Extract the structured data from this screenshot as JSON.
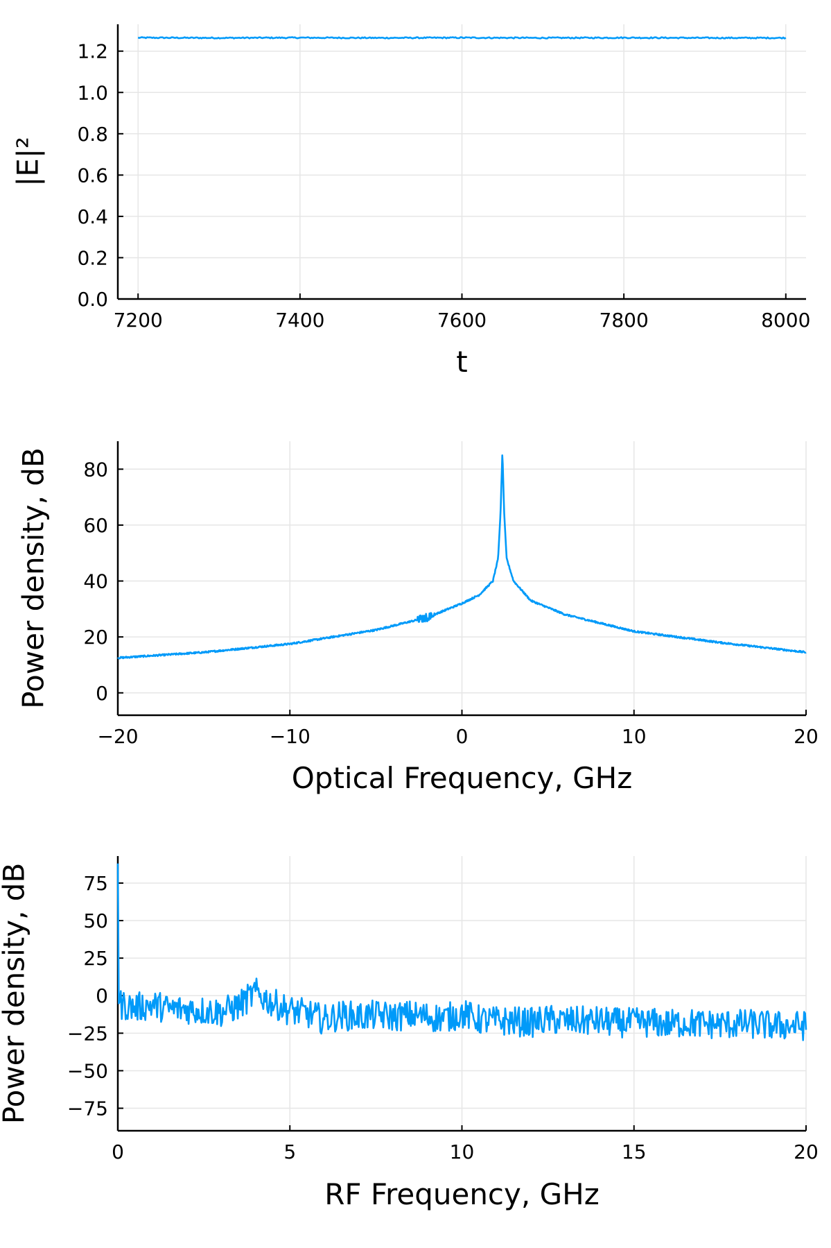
{
  "colors": {
    "series": "#009AF9",
    "grid": "#e6e6e6",
    "axis": "#000000"
  },
  "chart_data": [
    {
      "type": "line",
      "xlabel": "t",
      "ylabel": "|E|²",
      "xlim": [
        7175,
        8025
      ],
      "ylim": [
        0.0,
        1.33
      ],
      "xticks": [
        7200,
        7400,
        7600,
        7800,
        8000
      ],
      "xtick_labels": [
        "7200",
        "7400",
        "7600",
        "7800",
        "8000"
      ],
      "yticks": [
        0.0,
        0.2,
        0.4,
        0.6,
        0.8,
        1.0,
        1.2
      ],
      "ytick_labels": [
        "0.0",
        "0.2",
        "0.4",
        "0.6",
        "0.8",
        "1.0",
        "1.2"
      ],
      "grid": true,
      "legend": "none",
      "series": [
        {
          "x": [
            7200,
            7300,
            7400,
            7500,
            7600,
            7700,
            7800,
            7900,
            8000
          ],
          "y": [
            1.265,
            1.264,
            1.265,
            1.264,
            1.265,
            1.264,
            1.265,
            1.264,
            1.264
          ]
        }
      ]
    },
    {
      "type": "line",
      "xlabel": "Optical Frequency, GHz",
      "ylabel": "Power density, dB",
      "xlim": [
        -20,
        20
      ],
      "ylim": [
        -8,
        90
      ],
      "xticks": [
        -20,
        -10,
        0,
        10,
        20
      ],
      "xtick_labels": [
        "−20",
        "−10",
        "0",
        "10",
        "20"
      ],
      "yticks": [
        0,
        20,
        40,
        60,
        80
      ],
      "ytick_labels": [
        "0",
        "20",
        "40",
        "60",
        "80"
      ],
      "grid": true,
      "legend": "none",
      "series": [
        {
          "x": [
            -20,
            -15,
            -10,
            -5,
            -2,
            0,
            1,
            1.8,
            2.1,
            2.25,
            2.35,
            2.45,
            2.6,
            3,
            4,
            6,
            10,
            15,
            20
          ],
          "y": [
            12.5,
            14.5,
            17.5,
            22.5,
            27,
            32,
            35,
            40,
            48,
            65,
            86.5,
            65,
            48,
            40,
            33,
            28,
            22,
            18,
            14.5
          ]
        }
      ]
    },
    {
      "type": "line",
      "xlabel": "RF Frequency, GHz",
      "ylabel": "Power density, dB",
      "xlim": [
        0,
        20
      ],
      "ylim": [
        -90,
        93
      ],
      "xticks": [
        0,
        5,
        10,
        15,
        20
      ],
      "xtick_labels": [
        "0",
        "5",
        "10",
        "15",
        "20"
      ],
      "yticks": [
        -75,
        -50,
        -25,
        0,
        25,
        50,
        75
      ],
      "ytick_labels": [
        "−75",
        "−50",
        "−25",
        "0",
        "25",
        "50",
        "75"
      ],
      "grid": true,
      "legend": "none",
      "series": [
        {
          "x": [
            0,
            0.02,
            0.1,
            0.5,
            1,
            1.5,
            2,
            2.5,
            3,
            3.5,
            4,
            4.5,
            5,
            5.5,
            6,
            6.5,
            7,
            7.5,
            8,
            8.5,
            9,
            9.5,
            10,
            10.5,
            11,
            11.5,
            12,
            12.5,
            13,
            13.5,
            14,
            14.5,
            15,
            15.5,
            16,
            16.5,
            17,
            17.5,
            18,
            18.5,
            19,
            19.5,
            20
          ],
          "y": [
            88,
            -5,
            -6,
            -8,
            -6,
            -9,
            -9,
            -10,
            -11,
            -7,
            2,
            -5,
            -10,
            -12,
            -16,
            -13,
            -14,
            -13,
            -14,
            -13,
            -14,
            -15,
            -12,
            -16,
            -17,
            -17,
            -18,
            -16,
            -17,
            -17,
            -17,
            -18,
            -18,
            -18,
            -19,
            -18,
            -19,
            -19,
            -19,
            -19,
            -20,
            -20,
            -20
          ]
        }
      ]
    }
  ]
}
